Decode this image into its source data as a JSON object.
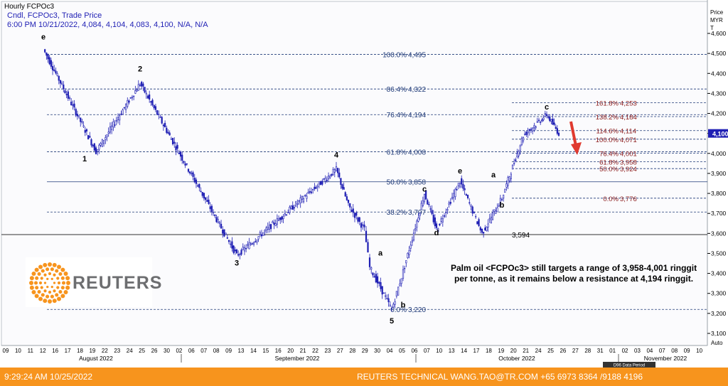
{
  "header": {
    "title": "Hourly FCPOc3",
    "line1": "Cndl, FCPOc3, Trade Price",
    "line2": "6:00 PM 10/21/2022, 4,084, 4,104, 4,083, 4,100, N/A, N/A"
  },
  "axis": {
    "title_lines": [
      "Price",
      "MYR",
      "T"
    ],
    "tick_labels": [
      "3,100",
      "3,200",
      "3,300",
      "3,400",
      "3,500",
      "3,600",
      "3,700",
      "3,800",
      "3,900",
      "4,000",
      "4,100",
      "4,200",
      "4,300",
      "4,400",
      "4,500",
      "4,600"
    ],
    "last_price_label": "4,100",
    "auto_label": "Auto"
  },
  "xaxis": {
    "day_labels": [
      "09",
      "10",
      "11",
      "12",
      "16",
      "17",
      "18",
      "19",
      "22",
      "23",
      "24",
      "25",
      "26",
      "30",
      "02",
      "06",
      "07",
      "08",
      "09",
      "13",
      "14",
      "15",
      "16",
      "20",
      "21",
      "22",
      "23",
      "27",
      "28",
      "29",
      "30",
      "04",
      "05",
      "06",
      "07",
      "10",
      "13",
      "14",
      "17",
      "18",
      "19",
      "20",
      "21",
      "24",
      "25",
      "26",
      "27",
      "28",
      "31",
      "01",
      "02",
      "03",
      "04",
      "07",
      "08",
      "09",
      "10"
    ],
    "month_labels": [
      "August 2022",
      "September 2022",
      "October 2022",
      "November 2022"
    ],
    "data_period_label": "D96 Data Period"
  },
  "chart_data": {
    "type": "candlestick",
    "title": "Hourly FCPOc3",
    "ylabel": "Price MYR T",
    "ylim": [
      3050,
      4650
    ],
    "y_ticks": [
      3100,
      3200,
      3300,
      3400,
      3500,
      3600,
      3700,
      3800,
      3900,
      4000,
      4100,
      4200,
      4300,
      4400,
      4500,
      4600
    ],
    "last_bar": {
      "time": "6:00 PM 10/21/2022",
      "open": 4084,
      "high": 4104,
      "low": 4083,
      "close": 4100
    },
    "swing_points": [
      {
        "date": "2022-08-12",
        "price": 4520
      },
      {
        "date": "2022-08-19",
        "price": 4010
      },
      {
        "date": "2022-08-24",
        "price": 4350
      },
      {
        "date": "2022-09-08",
        "price": 3490
      },
      {
        "date": "2022-09-22",
        "price": 3920
      },
      {
        "date": "2022-09-23",
        "price": 3740
      },
      {
        "date": "2022-09-26",
        "price": 3620
      },
      {
        "date": "2022-09-27",
        "price": 3430
      },
      {
        "date": "2022-09-29",
        "price": 3220
      },
      {
        "date": "2022-09-30",
        "price": 3410
      },
      {
        "date": "2022-10-04",
        "price": 3800
      },
      {
        "date": "2022-10-05",
        "price": 3620
      },
      {
        "date": "2022-10-07",
        "price": 3860
      },
      {
        "date": "2022-10-13",
        "price": 3600
      },
      {
        "date": "2022-10-17",
        "price": 3776
      },
      {
        "date": "2022-10-18",
        "price": 4090
      },
      {
        "date": "2022-10-20",
        "price": 4194
      },
      {
        "date": "2022-10-21",
        "price": 4100
      }
    ],
    "retracement_left": [
      {
        "label": "100.0%",
        "value": 4495,
        "text": "4,495"
      },
      {
        "label": "86.4%",
        "value": 4322,
        "text": "4,322"
      },
      {
        "label": "76.4%",
        "value": 4194,
        "text": "4,194"
      },
      {
        "label": "61.8%",
        "value": 4008,
        "text": "4,008"
      },
      {
        "label": "50.0%",
        "value": 3858,
        "text": "3,858"
      },
      {
        "label": "38.2%",
        "value": 3707,
        "text": "3,707"
      },
      {
        "label": "0.0%",
        "value": 3220,
        "text": "3,220"
      }
    ],
    "retracement_right": [
      {
        "label": "161.8%",
        "value": 4253,
        "text": "4,253"
      },
      {
        "label": "138.2%",
        "value": 4184,
        "text": "4,184"
      },
      {
        "label": "114.6%",
        "value": 4114,
        "text": "4,114"
      },
      {
        "label": "100.0%",
        "value": 4071,
        "text": "4,071"
      },
      {
        "label": "76.4%",
        "value": 4001,
        "text": "4,001"
      },
      {
        "label": "61.8%",
        "value": 3958,
        "text": "3,958"
      },
      {
        "label": "50.0%",
        "value": 3924,
        "text": "3,924"
      },
      {
        "label": "0.0%",
        "value": 3776,
        "text": "3,776"
      }
    ],
    "horizontal_level": {
      "value": 3594,
      "text": "3,594"
    },
    "wave_labels": [
      {
        "text": "e",
        "date": "2022-08-12",
        "price": 4570
      },
      {
        "text": "1",
        "date": "2022-08-18",
        "price": 3960
      },
      {
        "text": "2",
        "date": "2022-08-24",
        "price": 4410
      },
      {
        "text": "3",
        "date": "2022-09-08",
        "price": 3440
      },
      {
        "text": "4",
        "date": "2022-09-22",
        "price": 3980
      },
      {
        "text": "a",
        "date": "2022-09-28",
        "price": 3490
      },
      {
        "text": "b",
        "date": "2022-09-30",
        "price": 3230
      },
      {
        "text": "5",
        "date": "2022-09-29",
        "price": 3150
      },
      {
        "text": "c",
        "date": "2022-10-04",
        "price": 3810
      },
      {
        "text": "d",
        "date": "2022-10-05",
        "price": 3590
      },
      {
        "text": "e",
        "date": "2022-10-07",
        "price": 3900
      },
      {
        "text": "a",
        "date": "2022-10-14",
        "price": 3880
      },
      {
        "text": "b",
        "date": "2022-10-17",
        "price": 3730
      },
      {
        "text": "c",
        "date": "2022-10-20",
        "price": 4220
      }
    ]
  },
  "logo": {
    "wordmark": "REUTERS"
  },
  "note": {
    "line1": "Palm oil <FCPOc3> still targets a range of 3,958-4,001 ringgit",
    "line2": "per tonne, as it remains below a resistance at 4,194 ringgit."
  },
  "footer": {
    "timestamp": "9:29:24 AM 10/25/2022",
    "credit": "REUTERS TECHNICAL  WANG.TAO@TR.COM  +65 6973 8364 /9188 4196"
  },
  "colors": {
    "candle": "#1f1fb4",
    "left_fib_text": "#1f3a78",
    "right_fib_text": "#8b1a1a",
    "fib_line": "#1f3a78",
    "arrow": "#e03a2f",
    "footer_bg": "#f7941d"
  }
}
